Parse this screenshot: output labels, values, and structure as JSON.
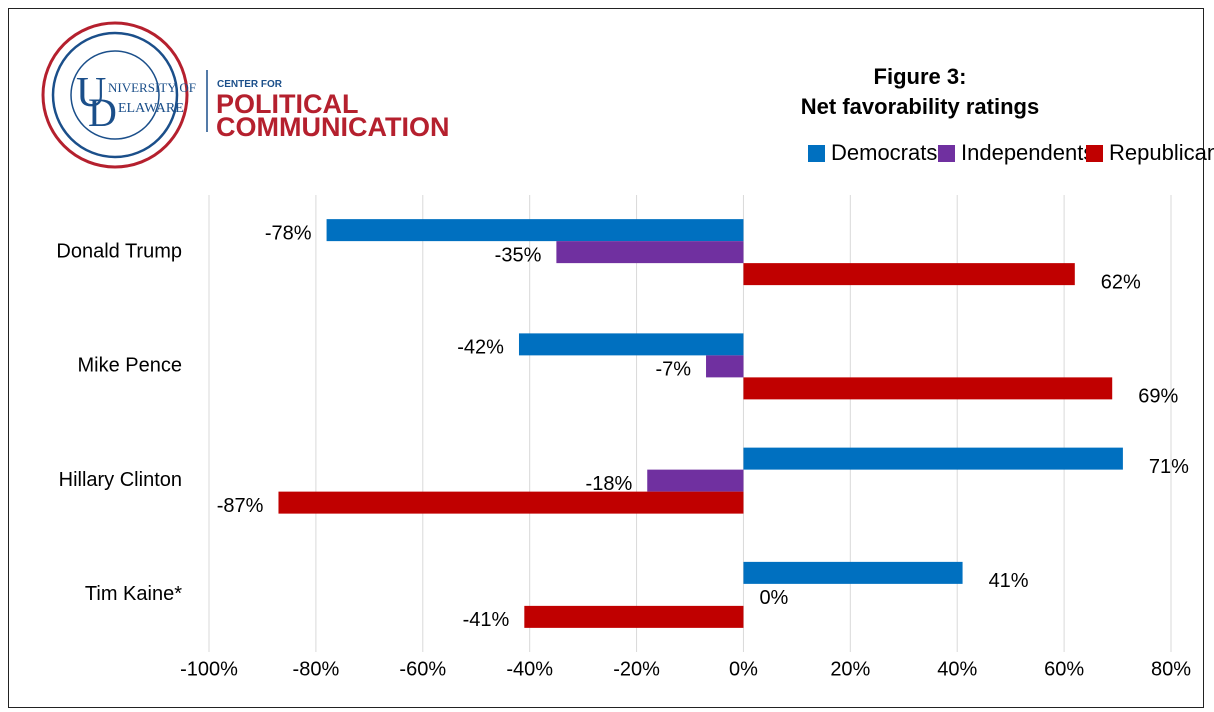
{
  "header": {
    "logo": {
      "ud_line1": "NIVERSITY OF",
      "ud_line2": "ELAWARE",
      "center_for": "CENTER FOR",
      "political": "POLITICAL",
      "communication": "COMMUNICATION"
    },
    "title_line1": "Figure 3:",
    "title_line2": "Net favorability ratings"
  },
  "colors": {
    "democrats": "#0070C0",
    "independents": "#7030A0",
    "republicans": "#C00000",
    "logo_red": "#B5202E",
    "logo_blue": "#1B4F8A",
    "gridline": "#D9D9D9"
  },
  "chart_data": {
    "type": "bar",
    "orientation": "horizontal",
    "title": "Figure 3: Net favorability ratings",
    "categories": [
      "Donald Trump",
      "Mike Pence",
      "Hillary Clinton",
      "Tim Kaine*"
    ],
    "series": [
      {
        "name": "Democrats",
        "values": [
          -78,
          -42,
          71,
          41
        ],
        "labels": [
          "-78%",
          "-42%",
          "71%",
          "41%"
        ]
      },
      {
        "name": "Independents",
        "values": [
          -35,
          -7,
          -18,
          0
        ],
        "labels": [
          "-35%",
          "-7%",
          "-18%",
          "0%"
        ]
      },
      {
        "name": "Republicans",
        "values": [
          62,
          69,
          -87,
          -41
        ],
        "labels": [
          "62%",
          "69%",
          "-87%",
          "-41%"
        ]
      }
    ],
    "xlim": [
      -100,
      80
    ],
    "x_ticks": [
      -100,
      -80,
      -60,
      -40,
      -20,
      0,
      20,
      40,
      60,
      80
    ],
    "x_tick_labels": [
      "-100%",
      "-80%",
      "-60%",
      "-40%",
      "-20%",
      "0%",
      "20%",
      "40%",
      "60%",
      "80%"
    ],
    "grid": true,
    "legend_position": "top-right"
  }
}
